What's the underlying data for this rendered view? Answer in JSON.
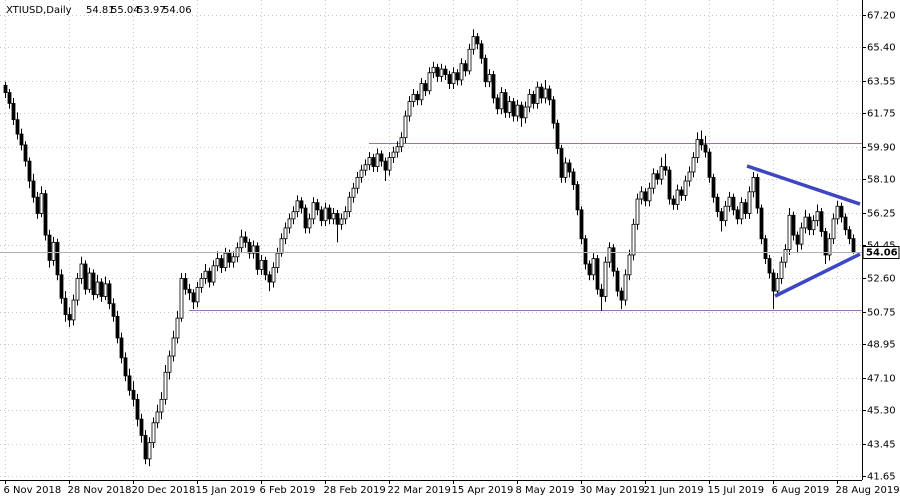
{
  "chart_data": {
    "type": "candlestick",
    "title": "XTIUSD,Daily",
    "categories": [
      "6 Nov 2018",
      null,
      null,
      null,
      null,
      null,
      null,
      null,
      null,
      null,
      null,
      null,
      null,
      null,
      null,
      null,
      "28 Nov 2018",
      null,
      null,
      null,
      null,
      null,
      null,
      null,
      null,
      null,
      null,
      null,
      null,
      null,
      null,
      null,
      "20 Dec 2018",
      null,
      null,
      null,
      null,
      null,
      null,
      null,
      null,
      null,
      null,
      null,
      null,
      null,
      null,
      null,
      "15 Jan 2019",
      null,
      null,
      null,
      null,
      null,
      null,
      null,
      null,
      null,
      null,
      null,
      null,
      null,
      null,
      null,
      "6 Feb 2019",
      null,
      null,
      null,
      null,
      null,
      null,
      null,
      null,
      null,
      null,
      null,
      null,
      null,
      null,
      null,
      "28 Feb 2019",
      null,
      null,
      null,
      null,
      null,
      null,
      null,
      null,
      null,
      null,
      null,
      null,
      null,
      null,
      null,
      "22 Mar 2019",
      null,
      null,
      null,
      null,
      null,
      null,
      null,
      null,
      null,
      null,
      null,
      null,
      null,
      null,
      null,
      "15 Apr 2019",
      null,
      null,
      null,
      null,
      null,
      null,
      null,
      null,
      null,
      null,
      null,
      null,
      null,
      null,
      null,
      "8 May 2019",
      null,
      null,
      null,
      null,
      null,
      null,
      null,
      null,
      null,
      null,
      null,
      null,
      null,
      null,
      null,
      "30 May 2019",
      null,
      null,
      null,
      null,
      null,
      null,
      null,
      null,
      null,
      null,
      null,
      null,
      null,
      null,
      null,
      "21 Jun 2019",
      null,
      null,
      null,
      null,
      null,
      null,
      null,
      null,
      null,
      null,
      null,
      null,
      null,
      null,
      null,
      "15 Jul 2019",
      null,
      null,
      null,
      null,
      null,
      null,
      null,
      null,
      null,
      null,
      null,
      null,
      null,
      null,
      null,
      "6 Aug 2019",
      null,
      null,
      null,
      null,
      null,
      null,
      null,
      null,
      null,
      null,
      null,
      null,
      null,
      null,
      null,
      "28 Aug 2019",
      null,
      null,
      null,
      null
    ],
    "ohlc": [
      [
        63.3,
        63.5,
        62.6,
        62.9
      ],
      [
        62.9,
        63.1,
        62.0,
        62.3
      ],
      [
        62.3,
        62.6,
        61.1,
        61.4
      ],
      [
        61.4,
        61.8,
        60.3,
        60.6
      ],
      [
        60.6,
        60.9,
        59.7,
        60.0
      ],
      [
        60.0,
        60.2,
        58.8,
        59.1
      ],
      [
        59.1,
        59.3,
        57.6,
        58.0
      ],
      [
        58.0,
        58.4,
        56.8,
        57.1
      ],
      [
        57.1,
        57.4,
        55.9,
        56.2
      ],
      [
        56.2,
        57.7,
        56.0,
        57.3
      ],
      [
        57.3,
        57.5,
        54.7,
        55.0
      ],
      [
        55.0,
        55.3,
        53.2,
        53.6
      ],
      [
        53.6,
        54.9,
        53.3,
        54.6
      ],
      [
        54.6,
        54.8,
        52.5,
        52.8
      ],
      [
        52.8,
        53.1,
        51.2,
        51.5
      ],
      [
        51.5,
        51.9,
        50.2,
        50.6
      ],
      [
        50.6,
        51.0,
        49.9,
        50.3
      ],
      [
        50.3,
        51.7,
        50.0,
        51.4
      ],
      [
        51.4,
        52.9,
        51.1,
        52.6
      ],
      [
        52.6,
        53.8,
        52.3,
        53.4
      ],
      [
        53.4,
        53.6,
        51.7,
        52.0
      ],
      [
        52.0,
        53.2,
        51.8,
        52.9
      ],
      [
        52.9,
        53.1,
        51.4,
        51.7
      ],
      [
        51.7,
        52.8,
        51.5,
        52.4
      ],
      [
        52.4,
        52.6,
        51.3,
        51.6
      ],
      [
        51.6,
        52.7,
        51.4,
        52.3
      ],
      [
        52.3,
        52.5,
        50.9,
        51.2
      ],
      [
        51.2,
        51.5,
        50.2,
        50.5
      ],
      [
        50.5,
        50.8,
        49.0,
        49.3
      ],
      [
        49.3,
        49.6,
        47.9,
        48.2
      ],
      [
        48.2,
        48.5,
        46.9,
        47.2
      ],
      [
        47.2,
        47.6,
        46.1,
        46.4
      ],
      [
        46.4,
        46.9,
        45.5,
        45.9
      ],
      [
        45.9,
        46.2,
        44.4,
        44.8
      ],
      [
        44.8,
        45.1,
        43.5,
        43.9
      ],
      [
        43.9,
        44.2,
        42.3,
        42.6
      ],
      [
        42.6,
        43.8,
        42.2,
        43.5
      ],
      [
        43.5,
        44.9,
        43.2,
        44.6
      ],
      [
        44.6,
        45.6,
        44.3,
        45.2
      ],
      [
        45.2,
        46.3,
        44.8,
        45.9
      ],
      [
        45.9,
        47.8,
        45.6,
        47.4
      ],
      [
        47.4,
        48.6,
        47.0,
        48.3
      ],
      [
        48.3,
        49.7,
        48.0,
        49.3
      ],
      [
        49.3,
        50.8,
        49.0,
        50.4
      ],
      [
        50.4,
        52.9,
        50.2,
        52.6
      ],
      [
        52.6,
        52.9,
        51.7,
        52.0
      ],
      [
        52.0,
        52.3,
        51.4,
        51.8
      ],
      [
        51.8,
        52.0,
        50.9,
        51.3
      ],
      [
        51.3,
        52.4,
        51.0,
        52.1
      ],
      [
        52.1,
        52.9,
        51.8,
        52.6
      ],
      [
        52.6,
        53.4,
        52.3,
        53.0
      ],
      [
        53.0,
        53.2,
        52.1,
        52.4
      ],
      [
        52.4,
        53.6,
        52.2,
        53.3
      ],
      [
        53.3,
        54.1,
        53.0,
        53.7
      ],
      [
        53.7,
        53.9,
        52.9,
        53.2
      ],
      [
        53.2,
        54.3,
        53.0,
        54.0
      ],
      [
        54.0,
        54.2,
        53.2,
        53.5
      ],
      [
        53.5,
        54.1,
        53.2,
        53.8
      ],
      [
        53.8,
        54.6,
        53.5,
        54.3
      ],
      [
        54.3,
        55.3,
        54.0,
        54.9
      ],
      [
        54.9,
        55.2,
        54.3,
        54.6
      ],
      [
        54.6,
        54.8,
        53.7,
        54.0
      ],
      [
        54.0,
        54.7,
        53.7,
        54.4
      ],
      [
        54.4,
        54.6,
        52.8,
        53.1
      ],
      [
        53.1,
        53.9,
        52.8,
        53.6
      ],
      [
        53.6,
        53.8,
        52.5,
        52.8
      ],
      [
        52.8,
        53.0,
        51.9,
        52.4
      ],
      [
        52.4,
        53.5,
        52.1,
        53.2
      ],
      [
        53.2,
        54.3,
        52.9,
        54.0
      ],
      [
        54.0,
        55.1,
        53.8,
        54.8
      ],
      [
        54.8,
        55.7,
        54.5,
        55.4
      ],
      [
        55.4,
        56.2,
        55.1,
        55.9
      ],
      [
        55.9,
        56.6,
        55.6,
        56.3
      ],
      [
        56.3,
        57.2,
        56.0,
        56.9
      ],
      [
        56.9,
        57.1,
        56.2,
        56.5
      ],
      [
        56.5,
        56.7,
        55.1,
        55.4
      ],
      [
        55.4,
        56.2,
        55.1,
        55.9
      ],
      [
        55.9,
        57.1,
        55.6,
        56.8
      ],
      [
        56.8,
        57.0,
        56.1,
        56.4
      ],
      [
        56.4,
        56.6,
        55.5,
        55.8
      ],
      [
        55.8,
        56.8,
        55.5,
        56.5
      ],
      [
        56.5,
        56.7,
        55.6,
        55.9
      ],
      [
        55.9,
        56.5,
        55.6,
        56.2
      ],
      [
        56.2,
        56.4,
        54.6,
        55.6
      ],
      [
        55.6,
        56.2,
        55.3,
        55.9
      ],
      [
        55.9,
        56.6,
        55.6,
        56.3
      ],
      [
        56.3,
        57.4,
        56.0,
        57.1
      ],
      [
        57.1,
        57.9,
        56.8,
        57.6
      ],
      [
        57.6,
        58.5,
        57.3,
        58.2
      ],
      [
        58.2,
        58.9,
        57.9,
        58.6
      ],
      [
        58.6,
        59.2,
        58.3,
        58.9
      ],
      [
        58.9,
        59.6,
        58.6,
        59.3
      ],
      [
        59.3,
        59.5,
        58.5,
        58.8
      ],
      [
        58.8,
        59.8,
        58.5,
        59.5
      ],
      [
        59.5,
        59.7,
        58.8,
        59.1
      ],
      [
        59.1,
        59.3,
        58.0,
        58.6
      ],
      [
        58.6,
        59.6,
        58.3,
        59.3
      ],
      [
        59.3,
        59.9,
        59.0,
        59.6
      ],
      [
        59.6,
        60.2,
        59.3,
        59.9
      ],
      [
        59.9,
        60.7,
        59.6,
        60.4
      ],
      [
        60.4,
        61.9,
        60.1,
        61.6
      ],
      [
        61.6,
        62.7,
        61.3,
        62.4
      ],
      [
        62.4,
        63.1,
        62.1,
        62.8
      ],
      [
        62.8,
        63.0,
        62.2,
        62.5
      ],
      [
        62.5,
        63.7,
        62.2,
        63.4
      ],
      [
        63.4,
        63.6,
        62.7,
        63.0
      ],
      [
        63.0,
        64.3,
        62.8,
        64.0
      ],
      [
        64.0,
        64.6,
        63.7,
        64.3
      ],
      [
        64.3,
        64.5,
        63.5,
        63.8
      ],
      [
        63.8,
        64.5,
        63.5,
        64.2
      ],
      [
        64.2,
        64.4,
        63.6,
        63.9
      ],
      [
        63.9,
        64.1,
        63.1,
        63.4
      ],
      [
        63.4,
        64.3,
        63.1,
        64.0
      ],
      [
        64.0,
        64.2,
        63.3,
        63.6
      ],
      [
        63.6,
        64.8,
        63.3,
        64.5
      ],
      [
        64.5,
        64.7,
        63.8,
        64.1
      ],
      [
        64.1,
        65.6,
        63.9,
        65.3
      ],
      [
        65.3,
        66.4,
        65.0,
        66.0
      ],
      [
        66.0,
        66.2,
        65.3,
        65.6
      ],
      [
        65.6,
        65.8,
        64.5,
        64.8
      ],
      [
        64.8,
        65.0,
        63.2,
        63.5
      ],
      [
        63.5,
        64.2,
        63.2,
        63.9
      ],
      [
        63.9,
        64.1,
        62.3,
        62.6
      ],
      [
        62.6,
        62.8,
        61.7,
        62.0
      ],
      [
        62.0,
        63.2,
        61.7,
        62.9
      ],
      [
        62.9,
        63.1,
        61.5,
        61.8
      ],
      [
        61.8,
        62.7,
        61.5,
        62.4
      ],
      [
        62.4,
        62.6,
        61.3,
        61.6
      ],
      [
        61.6,
        62.5,
        61.3,
        62.2
      ],
      [
        62.2,
        62.4,
        61.0,
        61.5
      ],
      [
        61.5,
        62.4,
        61.2,
        62.1
      ],
      [
        62.1,
        63.1,
        61.8,
        62.8
      ],
      [
        62.8,
        63.0,
        62.0,
        62.3
      ],
      [
        62.3,
        63.5,
        62.0,
        63.2
      ],
      [
        63.2,
        63.4,
        62.3,
        62.6
      ],
      [
        62.6,
        63.6,
        62.3,
        63.1
      ],
      [
        63.1,
        63.3,
        62.2,
        62.5
      ],
      [
        62.5,
        62.7,
        60.9,
        61.2
      ],
      [
        61.2,
        61.4,
        59.5,
        59.8
      ],
      [
        59.8,
        60.0,
        57.9,
        58.2
      ],
      [
        58.2,
        59.3,
        57.9,
        59.0
      ],
      [
        59.0,
        59.2,
        58.2,
        58.5
      ],
      [
        58.5,
        58.7,
        57.5,
        57.8
      ],
      [
        57.8,
        58.0,
        56.1,
        56.4
      ],
      [
        56.4,
        56.6,
        54.5,
        54.8
      ],
      [
        54.8,
        55.0,
        53.1,
        53.4
      ],
      [
        53.4,
        53.6,
        52.5,
        52.8
      ],
      [
        52.8,
        54.0,
        52.5,
        53.7
      ],
      [
        53.7,
        53.9,
        51.7,
        52.0
      ],
      [
        52.0,
        52.3,
        50.8,
        51.6
      ],
      [
        51.6,
        53.8,
        51.3,
        53.5
      ],
      [
        53.5,
        54.6,
        53.2,
        54.3
      ],
      [
        54.3,
        54.5,
        52.7,
        53.0
      ],
      [
        53.0,
        53.2,
        51.6,
        51.9
      ],
      [
        51.9,
        52.1,
        50.9,
        51.4
      ],
      [
        51.4,
        53.1,
        51.1,
        52.8
      ],
      [
        52.8,
        54.2,
        52.5,
        53.9
      ],
      [
        53.9,
        55.9,
        53.6,
        55.6
      ],
      [
        55.6,
        57.3,
        55.3,
        57.0
      ],
      [
        57.0,
        57.7,
        56.7,
        57.4
      ],
      [
        57.4,
        57.6,
        56.6,
        56.9
      ],
      [
        56.9,
        57.9,
        56.6,
        57.6
      ],
      [
        57.6,
        58.7,
        57.3,
        58.4
      ],
      [
        58.4,
        58.6,
        57.8,
        58.1
      ],
      [
        58.1,
        59.3,
        57.8,
        58.8
      ],
      [
        58.8,
        59.5,
        58.3,
        58.6
      ],
      [
        58.6,
        58.8,
        56.7,
        57.0
      ],
      [
        57.0,
        57.2,
        56.4,
        56.7
      ],
      [
        56.7,
        57.8,
        56.4,
        57.5
      ],
      [
        57.5,
        57.7,
        56.9,
        57.2
      ],
      [
        57.2,
        58.3,
        56.9,
        58.0
      ],
      [
        58.0,
        58.8,
        57.7,
        58.5
      ],
      [
        58.5,
        59.6,
        58.2,
        59.3
      ],
      [
        59.3,
        60.7,
        59.0,
        60.3
      ],
      [
        60.3,
        60.8,
        59.7,
        60.0
      ],
      [
        60.0,
        60.5,
        59.3,
        59.6
      ],
      [
        59.6,
        59.8,
        57.9,
        58.2
      ],
      [
        58.2,
        58.4,
        56.8,
        57.1
      ],
      [
        57.1,
        57.3,
        56.0,
        56.3
      ],
      [
        56.3,
        56.5,
        55.2,
        55.8
      ],
      [
        55.8,
        56.9,
        55.5,
        56.6
      ],
      [
        56.6,
        57.4,
        56.3,
        57.1
      ],
      [
        57.1,
        57.3,
        56.1,
        56.4
      ],
      [
        56.4,
        56.6,
        55.6,
        55.9
      ],
      [
        55.9,
        57.1,
        55.6,
        56.8
      ],
      [
        56.8,
        57.0,
        55.9,
        56.2
      ],
      [
        56.2,
        57.7,
        55.9,
        57.4
      ],
      [
        57.4,
        58.5,
        57.1,
        58.2
      ],
      [
        58.2,
        58.4,
        56.2,
        56.5
      ],
      [
        56.5,
        56.7,
        54.5,
        54.8
      ],
      [
        54.8,
        55.0,
        53.4,
        53.7
      ],
      [
        53.7,
        53.9,
        52.6,
        52.9
      ],
      [
        52.9,
        53.1,
        50.9,
        51.9
      ],
      [
        51.9,
        52.9,
        51.6,
        52.6
      ],
      [
        52.6,
        53.8,
        52.3,
        53.5
      ],
      [
        53.5,
        54.5,
        53.2,
        54.2
      ],
      [
        54.2,
        56.5,
        53.9,
        56.1
      ],
      [
        56.1,
        56.3,
        54.7,
        55.0
      ],
      [
        55.0,
        55.2,
        54.0,
        54.5
      ],
      [
        54.5,
        55.7,
        54.2,
        55.4
      ],
      [
        55.4,
        56.4,
        55.1,
        56.0
      ],
      [
        56.0,
        56.2,
        55.0,
        55.3
      ],
      [
        55.3,
        56.1,
        55.0,
        55.8
      ],
      [
        55.8,
        56.7,
        55.5,
        56.3
      ],
      [
        56.3,
        56.5,
        54.9,
        55.2
      ],
      [
        55.2,
        55.4,
        53.4,
        53.9
      ],
      [
        53.9,
        55.1,
        53.6,
        54.8
      ],
      [
        54.8,
        56.2,
        54.5,
        55.9
      ],
      [
        55.9,
        56.9,
        55.6,
        56.6
      ],
      [
        56.6,
        56.8,
        55.7,
        56.0
      ],
      [
        56.0,
        56.2,
        55.0,
        55.3
      ],
      [
        55.3,
        55.5,
        54.5,
        54.8
      ],
      [
        54.81,
        55.04,
        53.97,
        54.06
      ]
    ],
    "up_color": "#ffffff",
    "down_color": "#000000",
    "outline_color": "#000000",
    "price_line_color": "#b0b0b0",
    "ylim": [
      41.43,
      68.03
    ],
    "yticks": [
      {
        "value": 67.2,
        "label": "67.20"
      },
      {
        "value": 65.4,
        "label": "65.40"
      },
      63.55,
      61.75,
      {
        "value": 59.9,
        "label": "59.90"
      },
      {
        "value": 58.1,
        "label": "58.10"
      },
      56.25,
      54.45,
      {
        "value": 52.6,
        "label": "52.60"
      },
      50.75,
      48.95,
      {
        "value": 47.1,
        "label": "47.10"
      },
      {
        "value": 45.3,
        "label": "45.30"
      },
      43.45,
      41.65
    ],
    "grid": true,
    "hlines": [
      {
        "value": 60.1,
        "start": 91,
        "color": "#a070b0"
      },
      {
        "value": 50.85,
        "start": 46,
        "color": "#a070b0"
      }
    ],
    "trendlines": [
      {
        "x": [
          185.5,
          213.75
        ],
        "y": [
          58.83,
          56.72
        ],
        "color": "#3e46c4"
      },
      {
        "x": [
          192.5,
          213.75
        ],
        "y": [
          51.62,
          53.95
        ],
        "color": "#3e46c4"
      }
    ]
  }
}
